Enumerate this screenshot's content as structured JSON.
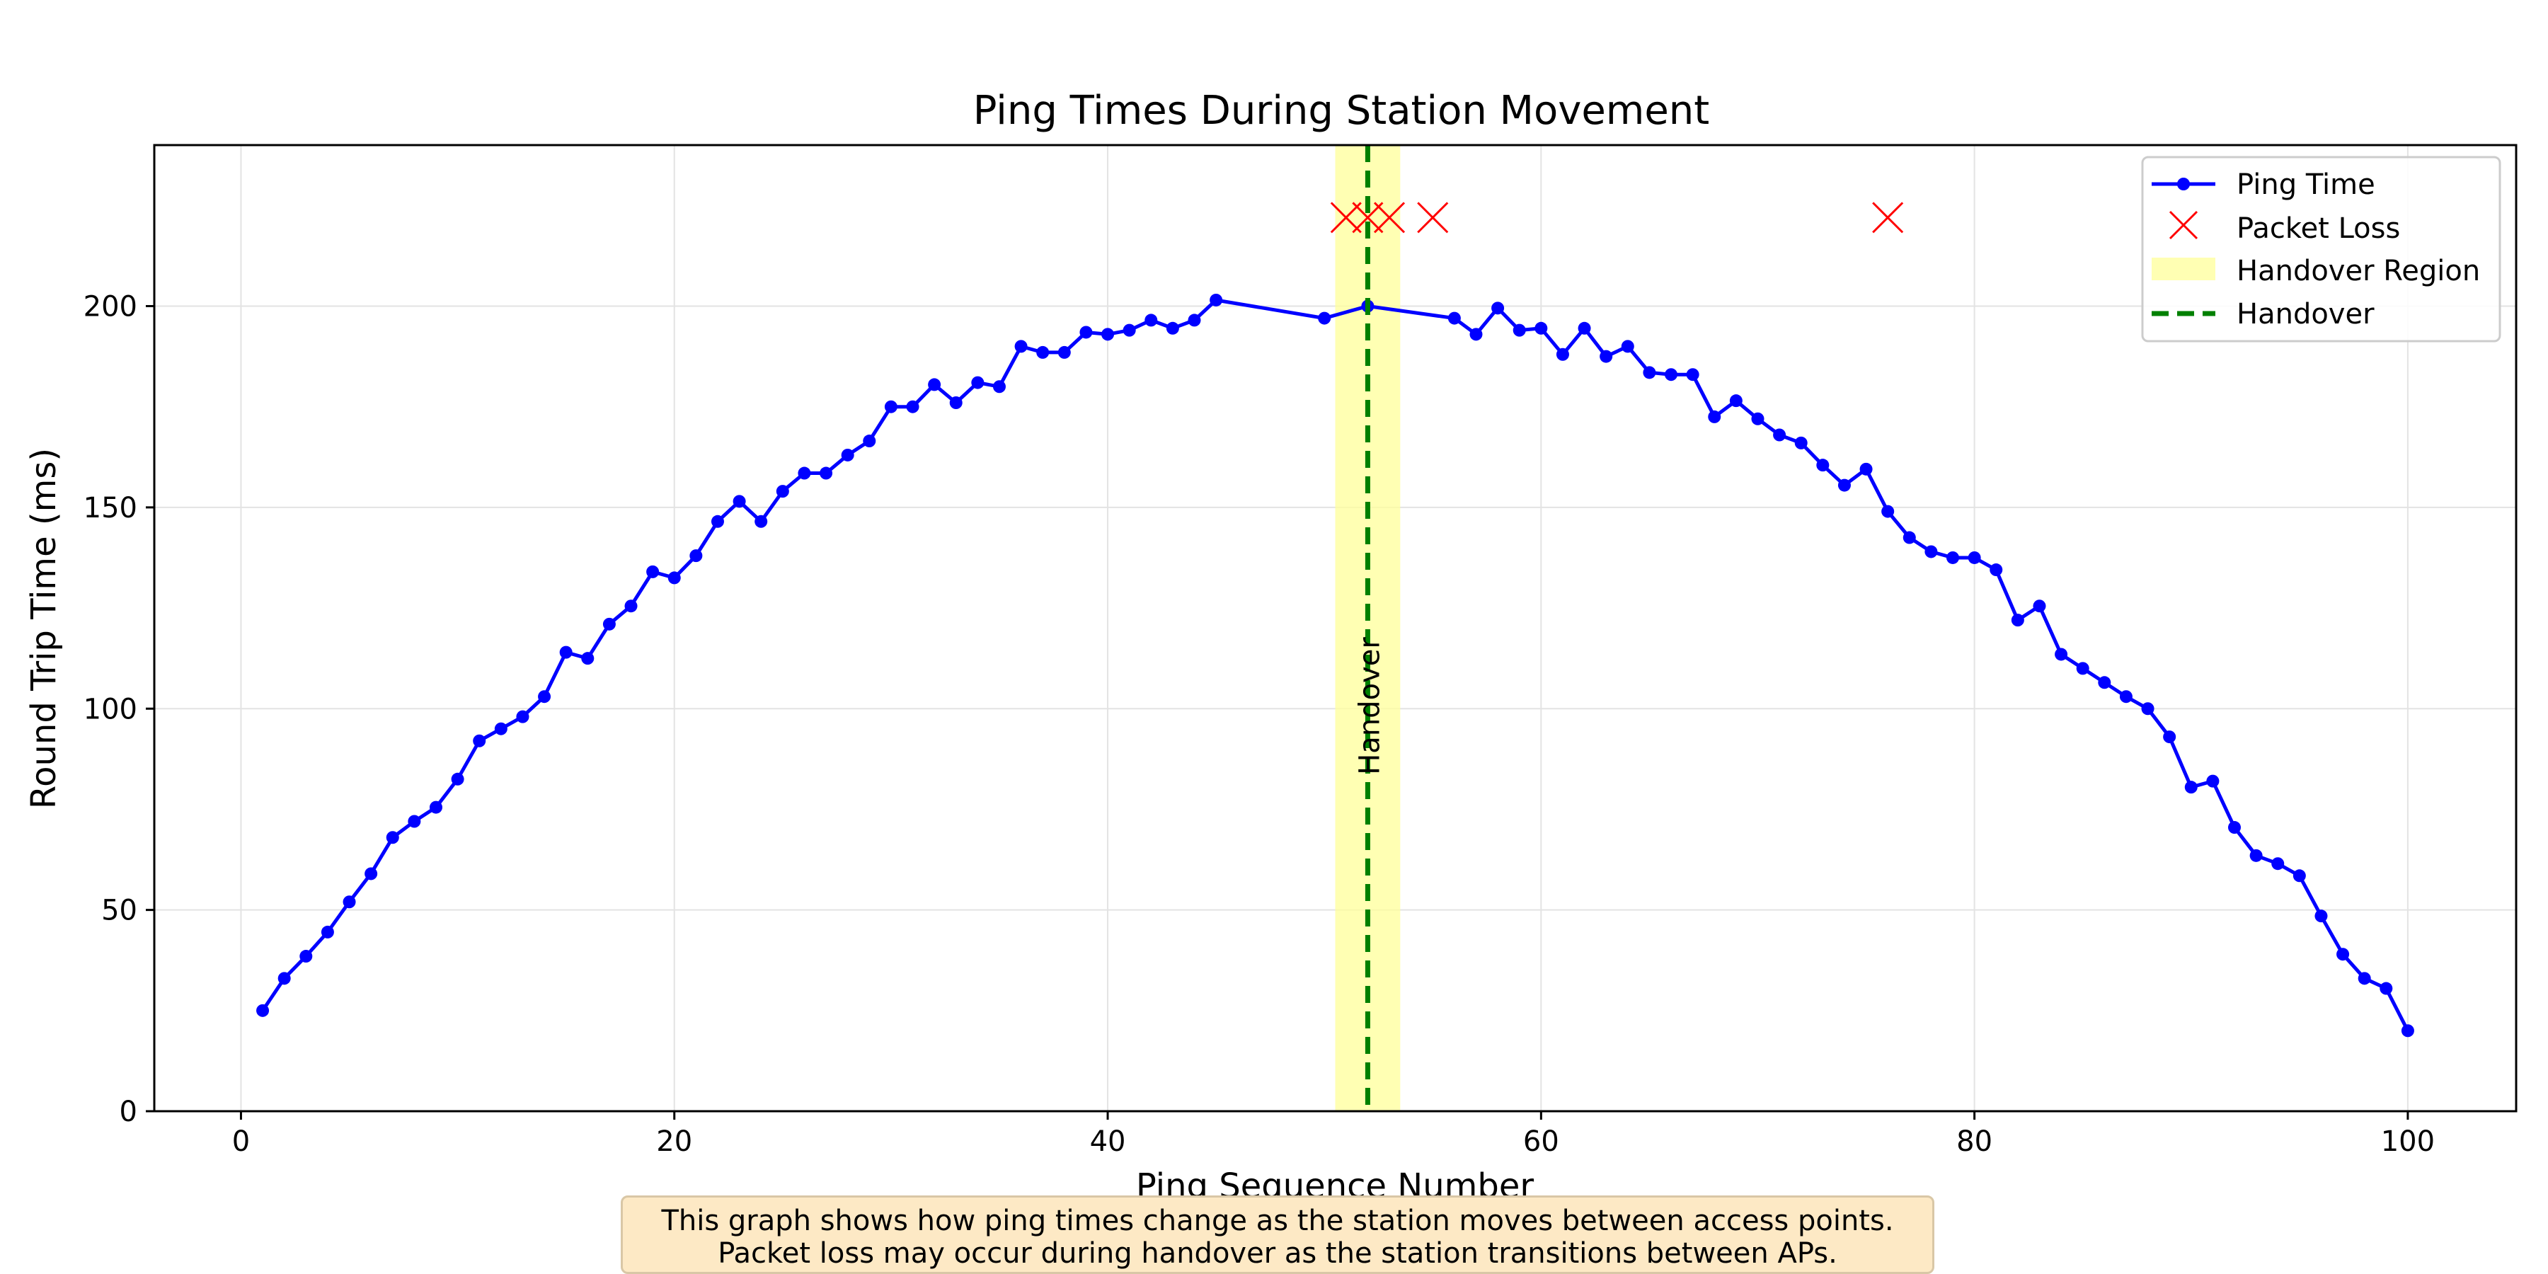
{
  "chart_data": {
    "type": "line",
    "title": "Ping Times During Station Movement",
    "xlabel": "Ping Sequence Number",
    "ylabel": "Round Trip Time (ms)",
    "xlim": [
      -4,
      105
    ],
    "ylim": [
      0,
      240
    ],
    "xticks": [
      0,
      20,
      40,
      60,
      80,
      100
    ],
    "yticks": [
      0,
      50,
      100,
      150,
      200
    ],
    "grid": true,
    "legend_position": "top-right",
    "series": [
      {
        "name": "Ping Time",
        "color": "#0000ff",
        "marker": "circle",
        "x": [
          1,
          2,
          3,
          4,
          5,
          6,
          7,
          8,
          9,
          10,
          11,
          12,
          13,
          14,
          15,
          16,
          17,
          18,
          19,
          20,
          21,
          22,
          23,
          24,
          25,
          26,
          27,
          28,
          29,
          30,
          31,
          32,
          33,
          34,
          35,
          36,
          37,
          38,
          39,
          40,
          41,
          42,
          43,
          44,
          45,
          50,
          52,
          56,
          57,
          58,
          59,
          60,
          61,
          62,
          63,
          64,
          65,
          66,
          67,
          68,
          69,
          70,
          71,
          72,
          73,
          74,
          75,
          76,
          77,
          78,
          79,
          80,
          81,
          82,
          83,
          84,
          85,
          86,
          87,
          88,
          89,
          90,
          91,
          92,
          93,
          94,
          95,
          96,
          97,
          98,
          99,
          100
        ],
        "y": [
          25,
          33,
          38.5,
          44.5,
          52,
          59,
          68,
          72,
          75.5,
          82.5,
          92,
          95,
          98,
          103,
          114,
          112.5,
          121,
          125.5,
          134,
          132.5,
          138,
          146.5,
          151.5,
          146.5,
          154,
          158.5,
          158.5,
          163,
          166.5,
          175,
          175,
          180.5,
          176,
          181,
          180,
          190,
          188.5,
          188.5,
          193.5,
          193,
          194,
          196.5,
          194.5,
          196.5,
          201.5,
          197,
          200,
          197,
          193,
          199.5,
          194,
          194.5,
          188,
          194.5,
          187.5,
          190,
          183.5,
          183,
          183,
          172.5,
          176.5,
          172,
          168,
          166,
          160.5,
          155.5,
          159.5,
          149,
          142.5,
          139,
          137.5,
          137.5,
          134.5,
          122,
          125.5,
          113.5,
          110,
          106.5,
          103,
          100,
          93,
          80.5,
          82,
          70.5,
          63.5,
          61.5,
          58.5,
          48.5,
          39,
          33,
          30.5,
          20
        ]
      }
    ],
    "packet_loss": {
      "name": "Packet Loss",
      "color": "#ff0000",
      "marker": "x",
      "y_level": 222,
      "x": [
        51,
        52,
        53,
        55,
        76
      ]
    },
    "handover_region": {
      "name": "Handover Region",
      "color": "#ffff99",
      "x_start": 50.5,
      "x_end": 53.5
    },
    "handover_line": {
      "name": "Handover",
      "color": "#008000",
      "x": 52,
      "annotation": "Handover"
    },
    "legend": [
      "Ping Time",
      "Packet Loss",
      "Handover Region",
      "Handover"
    ]
  },
  "caption": {
    "line1": "This graph shows how ping times change as the station moves between access points.",
    "line2": "Packet loss may occur during handover as the station transitions between APs."
  }
}
